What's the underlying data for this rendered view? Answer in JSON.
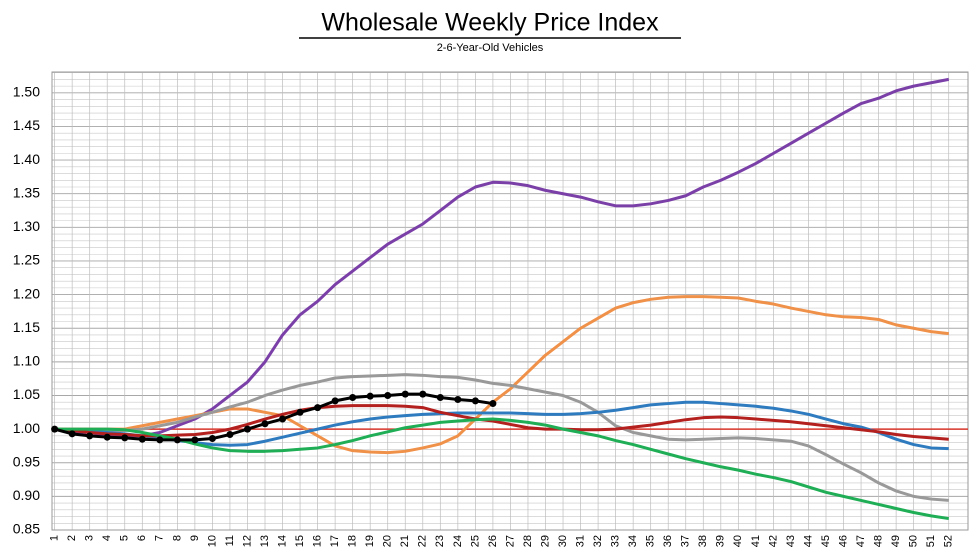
{
  "chart_data": {
    "type": "line",
    "title": "Wholesale Weekly Price Index",
    "subtitle": "2-6-Year-Old Vehicles",
    "x": [
      1,
      2,
      3,
      4,
      5,
      6,
      7,
      8,
      9,
      10,
      11,
      12,
      13,
      14,
      15,
      16,
      17,
      18,
      19,
      20,
      21,
      22,
      23,
      24,
      25,
      26,
      27,
      28,
      29,
      30,
      31,
      32,
      33,
      34,
      35,
      36,
      37,
      38,
      39,
      40,
      41,
      42,
      43,
      44,
      45,
      46,
      47,
      48,
      49,
      50,
      51,
      52
    ],
    "xlim": [
      0.85,
      53.1
    ],
    "xticks": [
      1,
      2,
      3,
      4,
      5,
      6,
      7,
      8,
      9,
      10,
      11,
      12,
      13,
      14,
      15,
      16,
      17,
      18,
      19,
      20,
      21,
      22,
      23,
      24,
      25,
      26,
      27,
      28,
      29,
      30,
      31,
      32,
      33,
      34,
      35,
      36,
      37,
      38,
      39,
      40,
      41,
      42,
      43,
      44,
      45,
      46,
      47,
      48,
      49,
      50,
      51,
      52
    ],
    "ylim": [
      0.85,
      1.531
    ],
    "yticks": [
      {
        "value": 0.85,
        "label": "0.85"
      },
      {
        "value": 0.9,
        "label": "0.90"
      },
      {
        "value": 0.95,
        "label": "0.95"
      },
      {
        "value": 1.0,
        "label": "1.00"
      },
      {
        "value": 1.05,
        "label": "1.05"
      },
      {
        "value": 1.1,
        "label": "1.10"
      },
      {
        "value": 1.15,
        "label": "1.15"
      },
      {
        "value": 1.2,
        "label": "1.20"
      },
      {
        "value": 1.25,
        "label": "1.25"
      },
      {
        "value": 1.3,
        "label": "1.30"
      },
      {
        "value": 1.35,
        "label": "1.35"
      },
      {
        "value": 1.4,
        "label": "1.40"
      },
      {
        "value": 1.45,
        "label": "1.45"
      },
      {
        "value": 1.5,
        "label": "1.50"
      }
    ],
    "grid": true,
    "minor_grid": 5,
    "reference_line": {
      "value": 1.0,
      "color": "#d9352b"
    },
    "series": [
      {
        "color": "#7b3fa8",
        "values": [
          1.0,
          0.995,
          0.99,
          0.99,
          0.99,
          0.99,
          0.995,
          1.005,
          1.015,
          1.03,
          1.05,
          1.07,
          1.1,
          1.14,
          1.17,
          1.19,
          1.215,
          1.235,
          1.255,
          1.275,
          1.29,
          1.305,
          1.325,
          1.345,
          1.36,
          1.367,
          1.366,
          1.362,
          1.355,
          1.35,
          1.345,
          1.338,
          1.332,
          1.332,
          1.335,
          1.34,
          1.347,
          1.36,
          1.37,
          1.382,
          1.395,
          1.41,
          1.425,
          1.44,
          1.455,
          1.47,
          1.484,
          1.492,
          1.503,
          1.51,
          1.515,
          1.52
        ]
      },
      {
        "color": "#f0914a",
        "values": [
          1.0,
          1.0,
          1.0,
          1.0,
          1.0,
          1.005,
          1.01,
          1.015,
          1.02,
          1.025,
          1.03,
          1.03,
          1.025,
          1.02,
          1.005,
          0.99,
          0.975,
          0.968,
          0.966,
          0.965,
          0.967,
          0.972,
          0.978,
          0.99,
          1.015,
          1.04,
          1.06,
          1.085,
          1.11,
          1.13,
          1.15,
          1.165,
          1.18,
          1.188,
          1.193,
          1.196,
          1.197,
          1.197,
          1.196,
          1.195,
          1.19,
          1.186,
          1.18,
          1.175,
          1.17,
          1.167,
          1.166,
          1.163,
          1.155,
          1.15,
          1.145,
          1.142
        ]
      },
      {
        "color": "#999999",
        "values": [
          1.0,
          0.998,
          0.997,
          0.997,
          0.998,
          1.0,
          1.005,
          1.01,
          1.018,
          1.025,
          1.033,
          1.04,
          1.05,
          1.058,
          1.065,
          1.07,
          1.076,
          1.078,
          1.079,
          1.08,
          1.081,
          1.08,
          1.078,
          1.077,
          1.073,
          1.068,
          1.065,
          1.06,
          1.055,
          1.05,
          1.04,
          1.025,
          1.005,
          0.995,
          0.99,
          0.985,
          0.984,
          0.985,
          0.986,
          0.987,
          0.986,
          0.984,
          0.982,
          0.975,
          0.962,
          0.948,
          0.935,
          0.92,
          0.908,
          0.9,
          0.896,
          0.894
        ]
      },
      {
        "color": "#2f7bbf",
        "values": [
          1.0,
          0.998,
          0.997,
          0.995,
          0.993,
          0.99,
          0.987,
          0.983,
          0.98,
          0.977,
          0.976,
          0.977,
          0.982,
          0.988,
          0.994,
          1.0,
          1.006,
          1.011,
          1.015,
          1.018,
          1.02,
          1.022,
          1.023,
          1.024,
          1.024,
          1.024,
          1.024,
          1.023,
          1.022,
          1.022,
          1.023,
          1.025,
          1.028,
          1.032,
          1.036,
          1.038,
          1.04,
          1.04,
          1.038,
          1.036,
          1.034,
          1.031,
          1.027,
          1.022,
          1.015,
          1.008,
          1.003,
          0.995,
          0.985,
          0.977,
          0.972,
          0.971
        ]
      },
      {
        "color": "#b3201e",
        "values": [
          1.0,
          0.998,
          0.995,
          0.993,
          0.992,
          0.99,
          0.99,
          0.991,
          0.992,
          0.995,
          1.0,
          1.007,
          1.015,
          1.022,
          1.028,
          1.032,
          1.034,
          1.035,
          1.035,
          1.035,
          1.034,
          1.032,
          1.025,
          1.02,
          1.015,
          1.012,
          1.007,
          1.002,
          1.0,
          1.0,
          0.999,
          0.999,
          1.0,
          1.003,
          1.006,
          1.01,
          1.014,
          1.017,
          1.018,
          1.017,
          1.015,
          1.013,
          1.011,
          1.008,
          1.005,
          1.002,
          0.999,
          0.996,
          0.992,
          0.989,
          0.987,
          0.985
        ]
      },
      {
        "color": "#1fae55",
        "values": [
          1.0,
          1.0,
          1.0,
          1.0,
          0.999,
          0.995,
          0.99,
          0.985,
          0.978,
          0.972,
          0.968,
          0.967,
          0.967,
          0.968,
          0.97,
          0.972,
          0.977,
          0.983,
          0.99,
          0.996,
          1.002,
          1.006,
          1.01,
          1.012,
          1.014,
          1.015,
          1.013,
          1.01,
          1.006,
          1.0,
          0.995,
          0.99,
          0.983,
          0.977,
          0.97,
          0.963,
          0.956,
          0.95,
          0.944,
          0.939,
          0.933,
          0.928,
          0.922,
          0.914,
          0.906,
          0.9,
          0.894,
          0.888,
          0.882,
          0.876,
          0.871,
          0.867
        ]
      },
      {
        "color": "#000000",
        "markers": true,
        "values": [
          1.0,
          0.993,
          0.99,
          0.988,
          0.987,
          0.985,
          0.984,
          0.984,
          0.984,
          0.986,
          0.992,
          1.0,
          1.008,
          1.015,
          1.025,
          1.032,
          1.042,
          1.047,
          1.049,
          1.05,
          1.052,
          1.052,
          1.047,
          1.044,
          1.042,
          1.038,
          null,
          null,
          null,
          null,
          null,
          null,
          null,
          null,
          null,
          null,
          null,
          null,
          null,
          null,
          null,
          null,
          null,
          null,
          null,
          null,
          null,
          null,
          null,
          null,
          null,
          null
        ]
      }
    ]
  }
}
